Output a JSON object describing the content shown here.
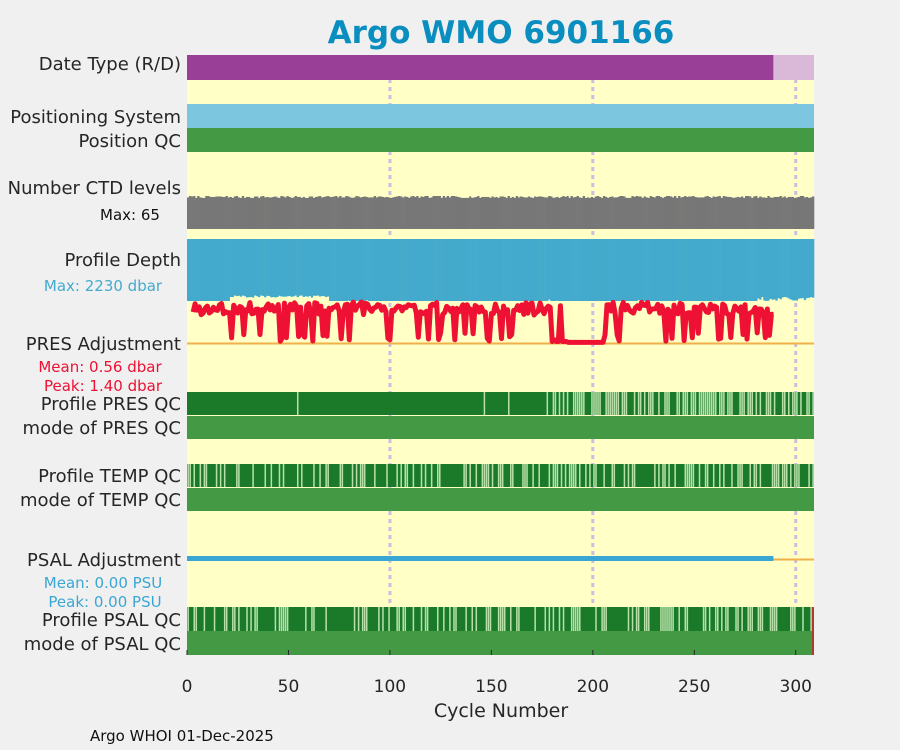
{
  "title": "Argo WMO 6901166",
  "footer": "Argo WHOI 01-Dec-2025",
  "colors": {
    "title": "#0a8ec0",
    "background": "#ffffc6",
    "figure_bg": "#f0f0f0",
    "realtime": "#993f97",
    "delayed": "#d9b8d8",
    "positioning": "#7dc6df",
    "position_qc": "#449a44",
    "ctd_levels": "#777777",
    "profile_depth": "#44aacd",
    "pres_adjustment": "#ee1133",
    "psal_adjustment": "#3aa6d4",
    "adjustment_zero": "#f0b04a",
    "qc_dark": "#1a7a2a",
    "qc_light": "#b7e0a8",
    "qc_mode": "#449a44",
    "qc_bad": "#b33a2a",
    "grid": "#c8c0e0"
  },
  "chart_data": {
    "type": "multi-panel timeline",
    "xlabel": "Cycle Number",
    "xlim": [
      0,
      309
    ],
    "xticks": [
      0,
      50,
      100,
      150,
      200,
      250,
      300
    ],
    "grid_x": [
      100,
      200,
      300
    ],
    "rows": [
      {
        "id": "date_type",
        "label": "Date Type (R/D)",
        "kind": "segments",
        "segments": [
          {
            "start": 0,
            "end": 289,
            "value": "R"
          },
          {
            "start": 289,
            "end": 309,
            "value": "D"
          }
        ]
      },
      {
        "id": "positioning",
        "label": "Positioning System",
        "kind": "band"
      },
      {
        "id": "position_qc",
        "label": "Position QC",
        "kind": "band"
      },
      {
        "id": "ctd_levels",
        "label": "Number CTD levels",
        "note": "Max: 65",
        "kind": "bars",
        "max": 65,
        "typical_min": 61,
        "typical_max": 65
      },
      {
        "id": "profile_depth",
        "label": "Profile Depth",
        "note": "Max: 2230 dbar",
        "kind": "bars",
        "max": 2230,
        "typical_min": 2000,
        "typical_max": 2230
      },
      {
        "id": "pres_adjustment",
        "label": "PRES Adjustment",
        "notes": [
          "Mean: 0.56 dbar",
          "Peak: 1.40 dbar"
        ],
        "kind": "line",
        "mean": 0.56,
        "peak": 1.4,
        "end_cycle": 289
      },
      {
        "id": "profile_pres_qc",
        "label": "Profile PRES QC",
        "kind": "qc"
      },
      {
        "id": "mode_pres_qc",
        "label": "mode of PRES QC",
        "kind": "band"
      },
      {
        "id": "profile_temp_qc",
        "label": "Profile TEMP QC",
        "kind": "qc"
      },
      {
        "id": "mode_temp_qc",
        "label": "mode of TEMP QC",
        "kind": "band"
      },
      {
        "id": "psal_adjustment",
        "label": "PSAL Adjustment",
        "notes": [
          "Mean: 0.00 PSU",
          "Peak: 0.00 PSU"
        ],
        "kind": "line",
        "mean": 0.0,
        "peak": 0.0,
        "end_cycle": 289
      },
      {
        "id": "profile_psal_qc",
        "label": "Profile PSAL QC",
        "kind": "qc"
      },
      {
        "id": "mode_psal_qc",
        "label": "mode of PSAL QC",
        "kind": "band"
      }
    ]
  }
}
